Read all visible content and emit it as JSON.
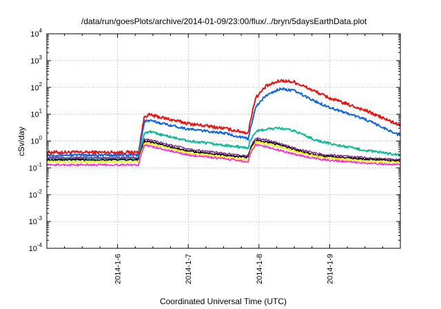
{
  "chart_data": {
    "type": "line",
    "title": "/data/run/goesPlots/archive/2014-01-09/23:00/flux/../bryn/5daysEarthData.plot",
    "xlabel": "Coordinated Universal Time (UTC)",
    "ylabel": "cSv/day",
    "xlim": [
      "2014-01-05 00:00",
      "2014-01-10 00:00"
    ],
    "ylim": [
      0.0001,
      10000
    ],
    "yscale": "log",
    "grid": true,
    "x_ticks": [
      {
        "label": "2014-1-6",
        "value": 1
      },
      {
        "label": "2014-1-7",
        "value": 2
      },
      {
        "label": "2014-1-8",
        "value": 3
      },
      {
        "label": "2014-1-9",
        "value": 4
      }
    ],
    "y_ticks": [
      {
        "base": "10",
        "exp": "-4",
        "value": 0.0001
      },
      {
        "base": "10",
        "exp": "-3",
        "value": 0.001
      },
      {
        "base": "10",
        "exp": "-2",
        "value": 0.01
      },
      {
        "base": "10",
        "exp": "-1",
        "value": 0.1
      },
      {
        "base": "10",
        "exp": "0",
        "value": 1
      },
      {
        "base": "10",
        "exp": "1",
        "value": 10
      },
      {
        "base": "10",
        "exp": "2",
        "value": 100
      },
      {
        "base": "10",
        "exp": "3",
        "value": 1000
      },
      {
        "base": "10",
        "exp": "4",
        "value": 10000
      }
    ],
    "series": [
      {
        "color": "#ee1111",
        "x": [
          0,
          1.3,
          1.32,
          1.38,
          1.45,
          2,
          2.5,
          2.85,
          2.88,
          2.95,
          3.1,
          3.3,
          3.5,
          3.8,
          4.0,
          4.5,
          5.0
        ],
        "values": [
          0.38,
          0.38,
          1.0,
          8.5,
          9.5,
          4.5,
          3.0,
          2.0,
          6,
          40,
          110,
          180,
          160,
          70,
          40,
          14,
          3.8
        ]
      },
      {
        "color": "#1166dd",
        "x": [
          0,
          1.3,
          1.32,
          1.38,
          1.45,
          2,
          2.5,
          2.85,
          2.88,
          2.95,
          3.1,
          3.3,
          3.5,
          3.8,
          4.0,
          4.5,
          5.0
        ],
        "values": [
          0.3,
          0.3,
          0.7,
          5.5,
          5.8,
          2.8,
          2.0,
          1.2,
          3,
          18,
          50,
          90,
          75,
          30,
          18,
          6.5,
          1.6
        ]
      },
      {
        "color": "#11bb99",
        "x": [
          0,
          1.3,
          1.32,
          1.38,
          1.45,
          2,
          2.5,
          2.85,
          2.88,
          2.95,
          3.1,
          3.3,
          3.5,
          3.8,
          4.0,
          4.5,
          5.0
        ],
        "values": [
          0.22,
          0.22,
          0.5,
          2.0,
          2.2,
          1.0,
          0.7,
          0.55,
          1.1,
          2.2,
          2.8,
          3.0,
          2.4,
          1.1,
          0.8,
          0.45,
          0.3
        ]
      },
      {
        "color": "#883399",
        "x": [
          0,
          1.3,
          1.32,
          1.38,
          1.45,
          2,
          2.5,
          2.85,
          2.88,
          2.95,
          3.1,
          3.3,
          3.5,
          3.8,
          4.0,
          4.5,
          5.0
        ],
        "values": [
          0.24,
          0.24,
          0.4,
          1.2,
          1.1,
          0.5,
          0.35,
          0.28,
          0.6,
          1.3,
          1.1,
          0.8,
          0.55,
          0.35,
          0.3,
          0.24,
          0.2
        ]
      },
      {
        "color": "#000000",
        "x": [
          0,
          1.3,
          1.32,
          1.38,
          1.45,
          2,
          2.5,
          2.85,
          2.88,
          2.95,
          3.1,
          3.3,
          3.5,
          3.8,
          4.0,
          4.5,
          5.0
        ],
        "values": [
          0.2,
          0.2,
          0.35,
          1.0,
          0.95,
          0.42,
          0.3,
          0.24,
          0.5,
          1.1,
          0.95,
          0.7,
          0.48,
          0.3,
          0.26,
          0.21,
          0.18
        ]
      },
      {
        "color": "#eeee00",
        "x": [
          0,
          1.3,
          1.32,
          1.38,
          1.45,
          2,
          2.5,
          2.85,
          2.88,
          2.95,
          3.1,
          3.3,
          3.5,
          3.8,
          4.0,
          4.5,
          5.0
        ],
        "values": [
          0.17,
          0.17,
          0.3,
          0.85,
          0.8,
          0.36,
          0.26,
          0.2,
          0.42,
          0.9,
          0.8,
          0.6,
          0.42,
          0.27,
          0.23,
          0.18,
          0.16
        ]
      },
      {
        "color": "#ff22dd",
        "x": [
          0,
          1.3,
          1.32,
          1.38,
          1.45,
          2,
          2.5,
          2.85,
          2.88,
          2.95,
          3.1,
          3.3,
          3.5,
          3.8,
          4.0,
          4.5,
          5.0
        ],
        "values": [
          0.13,
          0.13,
          0.25,
          0.7,
          0.65,
          0.3,
          0.22,
          0.17,
          0.35,
          0.72,
          0.62,
          0.45,
          0.32,
          0.22,
          0.19,
          0.15,
          0.13
        ]
      }
    ]
  }
}
